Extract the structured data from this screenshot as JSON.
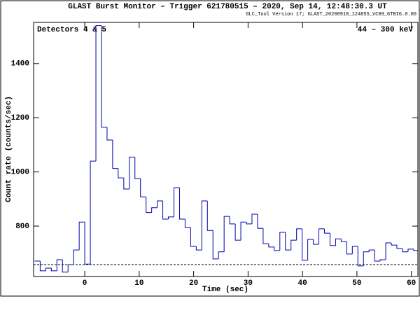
{
  "chart_data": {
    "type": "histogram",
    "title": "GLAST Burst Monitor  –  Trigger 621780515  –  2020, Sep 14, 12:48:30.3 UT",
    "subtitle": "GLC_Tool Version 17; GLAST_20200918_124855_VC09_GTBIG.0.00",
    "annotations": [
      "Detectors 4 & 5",
      "44 – 300 keV"
    ],
    "xlabel": "Time (sec)",
    "ylabel": "Count rate (counts/sec)",
    "color": "#0000b0",
    "bins": [
      -9.216,
      -8.192,
      -7.168,
      -6.144,
      -5.12,
      -4.096,
      -3.072,
      -2.048,
      -1.024,
      0,
      1.024,
      2.048,
      3.072,
      4.096,
      5.12,
      6.144,
      7.168,
      8.192,
      9.216,
      10.24,
      11.264,
      12.288,
      13.312,
      14.336,
      15.36,
      16.384,
      17.408,
      18.432,
      19.456,
      20.48,
      21.504,
      22.528,
      23.552,
      24.576,
      25.6,
      26.624,
      27.648,
      28.672,
      29.696,
      30.72,
      31.744,
      32.768,
      33.792,
      34.816,
      35.84,
      36.864,
      37.888,
      38.912,
      39.936,
      40.96,
      41.984,
      43.008,
      44.032,
      45.056,
      46.08,
      47.104,
      48.128,
      49.152,
      50.176,
      51.2,
      52.224,
      53.248,
      54.272,
      55.296,
      56.32,
      57.344,
      58.368,
      59.392,
      60.416,
      61.44
    ],
    "values": [
      671,
      635,
      645,
      635,
      676,
      630,
      658,
      712,
      815,
      660,
      1040,
      1540,
      1165,
      1118,
      1013,
      978,
      937,
      1055,
      975,
      908,
      850,
      868,
      893,
      826,
      834,
      942,
      826,
      795,
      725,
      712,
      893,
      784,
      679,
      705,
      836,
      808,
      748,
      815,
      808,
      844,
      792,
      735,
      723,
      710,
      777,
      712,
      748,
      790,
      674,
      751,
      733,
      790,
      774,
      728,
      753,
      743,
      697,
      725,
      653,
      705,
      712,
      671,
      676,
      738,
      730,
      717,
      705,
      715,
      710
    ],
    "background": 658,
    "xlim": [
      -9.4,
      61.2
    ],
    "ylim": [
      614,
      1552
    ],
    "xticks": [
      0,
      10,
      20,
      30,
      40,
      50,
      60
    ],
    "yticks": [
      800,
      1000,
      1200,
      1400
    ]
  }
}
